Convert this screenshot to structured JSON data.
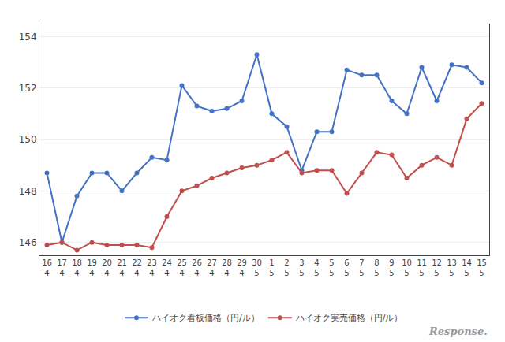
{
  "chart_data": {
    "type": "line",
    "categories": [
      "16\n4",
      "17\n4",
      "18\n4",
      "19\n4",
      "20\n4",
      "21\n4",
      "22\n4",
      "23\n4",
      "24\n4",
      "25\n4",
      "26\n4",
      "27\n4",
      "28\n4",
      "29\n4",
      "30\n5",
      "1\n5",
      "2\n5",
      "3\n5",
      "4\n5",
      "5\n5",
      "6\n5",
      "7\n5",
      "8\n5",
      "9\n5",
      "10\n5",
      "11\n5",
      "12\n5",
      "13\n5",
      "14\n5",
      "15\n5"
    ],
    "series": [
      {
        "name": "ハイオク看板価格（円/ル）",
        "color": "#4472C4",
        "marker": "circle",
        "line_style": "solid",
        "values": [
          148.7,
          146.0,
          147.8,
          148.7,
          148.7,
          148.0,
          148.7,
          149.3,
          149.2,
          152.1,
          151.3,
          151.1,
          151.2,
          151.5,
          153.3,
          151.0,
          150.5,
          148.8,
          150.3,
          150.3,
          152.7,
          152.5,
          152.5,
          151.5,
          151.0,
          152.8,
          151.5,
          152.9,
          152.8,
          152.2
        ]
      },
      {
        "name": "ハイオク実売価格（円/ル）",
        "color": "#C0504D",
        "marker": "circle",
        "line_style": "solid",
        "values": [
          145.9,
          146.0,
          145.7,
          146.0,
          145.9,
          145.9,
          145.9,
          145.8,
          147.0,
          148.0,
          148.2,
          148.5,
          148.7,
          148.9,
          149.0,
          149.2,
          149.5,
          148.7,
          148.8,
          148.8,
          147.9,
          148.7,
          149.5,
          149.4,
          148.5,
          149.0,
          149.3,
          149.0,
          150.8,
          151.4
        ]
      }
    ],
    "ylim": [
      145.5,
      154.5
    ],
    "yticks": [
      146,
      148,
      150,
      152,
      154
    ],
    "grid": true,
    "legend": "bottom",
    "annotations": [
      "Response."
    ]
  }
}
